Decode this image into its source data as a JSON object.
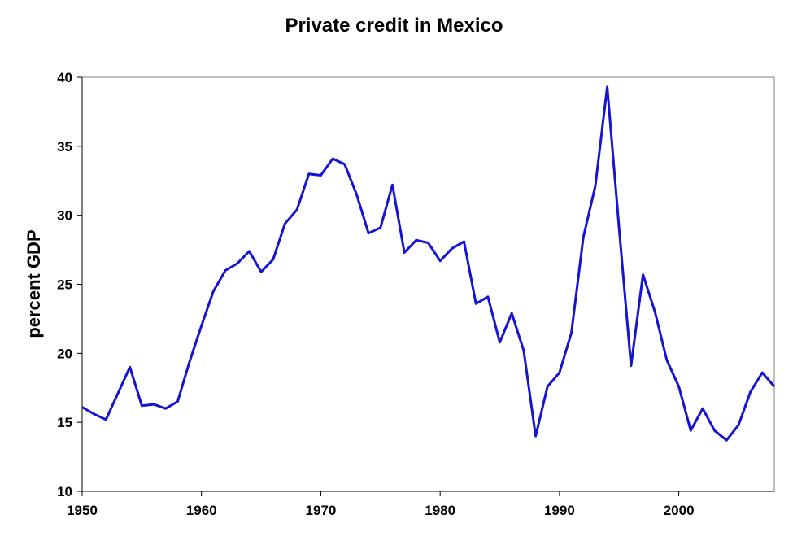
{
  "chart_data": {
    "type": "line",
    "title": "Private credit in Mexico",
    "xlabel": "",
    "ylabel": "percent GDP",
    "xlim": [
      1950,
      2008
    ],
    "ylim": [
      10,
      40
    ],
    "x_ticks": [
      1950,
      1960,
      1970,
      1980,
      1990,
      2000
    ],
    "y_ticks": [
      10,
      15,
      20,
      25,
      30,
      35,
      40
    ],
    "grid": false,
    "line_color": "#1414d2",
    "series": [
      {
        "x": [
          1950,
          1951,
          1952,
          1953,
          1954,
          1955,
          1956,
          1957,
          1958,
          1959,
          1960,
          1961,
          1962,
          1963,
          1964,
          1965,
          1966,
          1967,
          1968,
          1969,
          1970,
          1971,
          1972,
          1973,
          1974,
          1975,
          1976,
          1977,
          1978,
          1979,
          1980,
          1981,
          1982,
          1983,
          1984,
          1985,
          1986,
          1987,
          1988,
          1989,
          1990,
          1991,
          1992,
          1993,
          1994,
          1995,
          1996,
          1997,
          1998,
          1999,
          2000,
          2001,
          2002,
          2003,
          2004,
          2005,
          2006,
          2007,
          2008
        ],
        "values": [
          16.1,
          15.6,
          15.2,
          17.1,
          19.0,
          16.2,
          16.3,
          16.0,
          16.5,
          19.4,
          22.0,
          24.5,
          26.0,
          26.5,
          27.4,
          25.9,
          26.8,
          29.4,
          30.4,
          33.0,
          32.9,
          34.1,
          33.7,
          31.5,
          28.7,
          29.1,
          32.2,
          27.3,
          28.2,
          28.0,
          26.7,
          27.6,
          28.1,
          23.6,
          24.1,
          20.8,
          22.9,
          20.2,
          14.0,
          17.6,
          18.6,
          21.5,
          28.4,
          32.1,
          39.3,
          29.0,
          19.1,
          25.7,
          23.0,
          19.5,
          17.6,
          14.4,
          16.0,
          14.4,
          13.7,
          14.8,
          17.2,
          18.6,
          17.6
        ]
      }
    ]
  }
}
